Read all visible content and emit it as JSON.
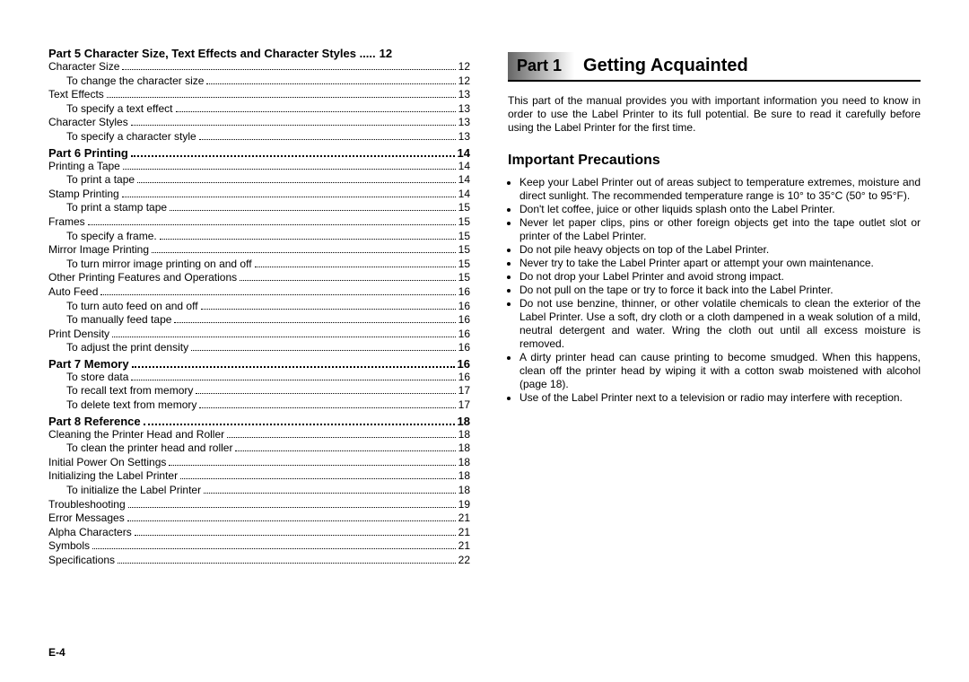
{
  "pageNumber": "E-4",
  "toc": {
    "sections": [
      {
        "head": {
          "label": "Part 5    Character Size, Text Effects and Character Styles .....",
          "page": "12"
        },
        "rows": [
          {
            "level": "l1",
            "label": "Character Size",
            "page": "12"
          },
          {
            "level": "l2",
            "label": "To change the character size",
            "page": "12"
          },
          {
            "level": "l1",
            "label": "Text Effects",
            "page": "13"
          },
          {
            "level": "l2",
            "label": "To specify a text effect",
            "page": "13"
          },
          {
            "level": "l1",
            "label": "Character Styles",
            "page": "13"
          },
          {
            "level": "l2",
            "label": "To specify a character style",
            "page": "13"
          }
        ]
      },
      {
        "head": {
          "label": "Part 6    Printing",
          "page": "14"
        },
        "rows": [
          {
            "level": "l1",
            "label": "Printing a Tape",
            "page": "14"
          },
          {
            "level": "l2",
            "label": "To print a tape",
            "page": "14"
          },
          {
            "level": "l1",
            "label": "Stamp Printing",
            "page": "14"
          },
          {
            "level": "l2",
            "label": "To print a stamp tape",
            "page": "15"
          },
          {
            "level": "l1",
            "label": "Frames",
            "page": "15"
          },
          {
            "level": "l2",
            "label": "To specify a frame.",
            "page": "15"
          },
          {
            "level": "l1",
            "label": "Mirror Image Printing",
            "page": "15"
          },
          {
            "level": "l2",
            "label": "To turn mirror image printing on and off",
            "page": "15"
          },
          {
            "level": "l1",
            "label": "Other Printing Features and Operations",
            "page": "15"
          },
          {
            "level": "l1",
            "label": "Auto Feed",
            "page": "16"
          },
          {
            "level": "l2",
            "label": "To turn auto feed on and off",
            "page": "16"
          },
          {
            "level": "l2",
            "label": "To manually feed tape",
            "page": "16"
          },
          {
            "level": "l1",
            "label": "Print Density",
            "page": "16"
          },
          {
            "level": "l2",
            "label": "To adjust the print density",
            "page": "16"
          }
        ]
      },
      {
        "head": {
          "label": "Part 7    Memory",
          "page": "16"
        },
        "rows": [
          {
            "level": "l2",
            "label": "To store data",
            "page": "16"
          },
          {
            "level": "l2",
            "label": "To recall text from memory",
            "page": "17"
          },
          {
            "level": "l2",
            "label": "To delete text from memory",
            "page": "17"
          }
        ]
      },
      {
        "head": {
          "label": "Part 8    Reference",
          "page": "18"
        },
        "rows": [
          {
            "level": "l1",
            "label": "Cleaning the Printer Head and Roller",
            "page": "18"
          },
          {
            "level": "l2",
            "label": "To clean the printer head and roller",
            "page": "18"
          },
          {
            "level": "l1",
            "label": "Initial Power On Settings",
            "page": "18"
          },
          {
            "level": "l1",
            "label": "Initializing the Label Printer",
            "page": "18"
          },
          {
            "level": "l2",
            "label": "To initialize the Label Printer",
            "page": "18"
          },
          {
            "level": "l1",
            "label": "Troubleshooting",
            "page": "19"
          },
          {
            "level": "l1",
            "label": "Error Messages",
            "page": "21"
          },
          {
            "level": "l1",
            "label": "Alpha Characters",
            "page": "21"
          },
          {
            "level": "l1",
            "label": "Symbols",
            "page": "21"
          },
          {
            "level": "l1",
            "label": "Specifications",
            "page": "22"
          }
        ]
      }
    ]
  },
  "right": {
    "partBadge": "Part 1",
    "partTitle": "Getting Acquainted",
    "intro": "This part of the manual provides you with important information you need to know in order to use the Label Printer to its full potential. Be sure to read it carefully before using the Label Printer for the first time.",
    "precautionsHead": "Important Precautions",
    "precautions": [
      "Keep your Label Printer out of areas subject to temperature extremes, moisture and direct sunlight. The recommended temperature range is 10° to 35°C (50° to 95°F).",
      "Don't let coffee, juice or other liquids splash onto the Label Printer.",
      "Never let paper clips, pins or other foreign objects get into the tape outlet slot or printer of the Label Printer.",
      "Do not pile heavy objects on top of the Label Printer.",
      "Never try to take the Label Printer apart or attempt your own maintenance.",
      "Do not drop your Label Printer and avoid strong impact.",
      "Do not pull on the tape or try to force it back into the Label Printer.",
      "Do not use benzine, thinner, or other volatile chemicals to clean the exterior of the Label Printer. Use a soft, dry cloth or a cloth dampened in a weak solution of a mild, neutral detergent and water. Wring the cloth out until all excess moisture is removed.",
      "A dirty printer head can cause printing to become smudged. When this happens, clean off the printer head by wiping it with a cotton swab moistened with alcohol (page 18).",
      "Use of the Label Printer next to a television or radio may interfere with reception."
    ]
  }
}
